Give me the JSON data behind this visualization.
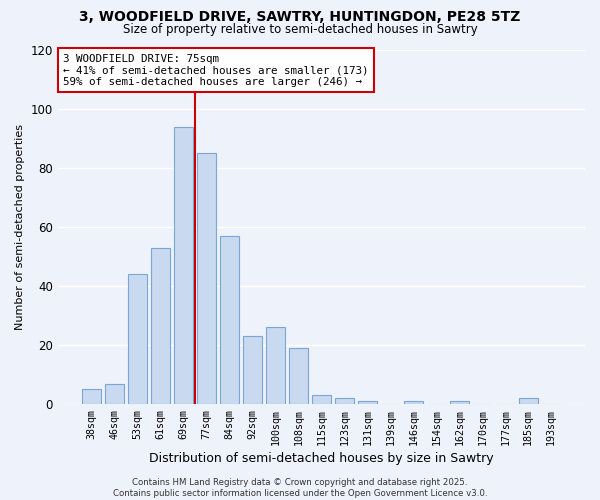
{
  "title1": "3, WOODFIELD DRIVE, SAWTRY, HUNTINGDON, PE28 5TZ",
  "title2": "Size of property relative to semi-detached houses in Sawtry",
  "xlabel": "Distribution of semi-detached houses by size in Sawtry",
  "ylabel": "Number of semi-detached properties",
  "bar_labels": [
    "38sqm",
    "46sqm",
    "53sqm",
    "61sqm",
    "69sqm",
    "77sqm",
    "84sqm",
    "92sqm",
    "100sqm",
    "108sqm",
    "115sqm",
    "123sqm",
    "131sqm",
    "139sqm",
    "146sqm",
    "154sqm",
    "162sqm",
    "170sqm",
    "177sqm",
    "185sqm",
    "193sqm"
  ],
  "bar_heights": [
    5,
    7,
    44,
    53,
    94,
    85,
    57,
    23,
    26,
    19,
    3,
    2,
    1,
    0,
    1,
    0,
    1,
    0,
    0,
    2,
    0
  ],
  "bar_color": "#c9d9f0",
  "bar_edge_color": "#7aa8d4",
  "vline_color": "#cc0000",
  "annotation_title": "3 WOODFIELD DRIVE: 75sqm",
  "annotation_line2": "← 41% of semi-detached houses are smaller (173)",
  "annotation_line3": "59% of semi-detached houses are larger (246) →",
  "annotation_box_color": "#ffffff",
  "annotation_box_edge": "#cc0000",
  "ylim": [
    0,
    120
  ],
  "yticks": [
    0,
    20,
    40,
    60,
    80,
    100,
    120
  ],
  "footer1": "Contains HM Land Registry data © Crown copyright and database right 2025.",
  "footer2": "Contains public sector information licensed under the Open Government Licence v3.0.",
  "bg_color": "#eef2fb",
  "grid_color": "#ffffff"
}
